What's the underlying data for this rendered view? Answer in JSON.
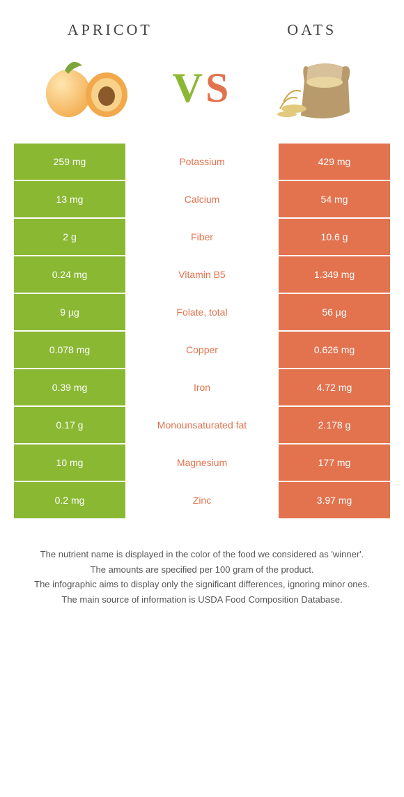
{
  "colors": {
    "left": "#8ab833",
    "right": "#e2734e",
    "neutral_text": "#555"
  },
  "header": {
    "left": "Apricot",
    "right": "Oats"
  },
  "vs": {
    "v": "V",
    "s": "S"
  },
  "rows": [
    {
      "left": "259 mg",
      "label": "Potassium",
      "right": "429 mg",
      "winner": "right"
    },
    {
      "left": "13 mg",
      "label": "Calcium",
      "right": "54 mg",
      "winner": "right"
    },
    {
      "left": "2 g",
      "label": "Fiber",
      "right": "10.6 g",
      "winner": "right"
    },
    {
      "left": "0.24 mg",
      "label": "Vitamin B5",
      "right": "1.349 mg",
      "winner": "right"
    },
    {
      "left": "9 µg",
      "label": "Folate, total",
      "right": "56 µg",
      "winner": "right"
    },
    {
      "left": "0.078 mg",
      "label": "Copper",
      "right": "0.626 mg",
      "winner": "right"
    },
    {
      "left": "0.39 mg",
      "label": "Iron",
      "right": "4.72 mg",
      "winner": "right"
    },
    {
      "left": "0.17 g",
      "label": "Monounsaturated fat",
      "right": "2.178 g",
      "winner": "right"
    },
    {
      "left": "10 mg",
      "label": "Magnesium",
      "right": "177 mg",
      "winner": "right"
    },
    {
      "left": "0.2 mg",
      "label": "Zinc",
      "right": "3.97 mg",
      "winner": "right"
    }
  ],
  "footnotes": [
    "The nutrient name is displayed in the color of the food we considered as 'winner'.",
    "The amounts are specified per 100 gram of the product.",
    "The infographic aims to display only the significant differences, ignoring minor ones.",
    "The main source of information is USDA Food Composition Database."
  ]
}
